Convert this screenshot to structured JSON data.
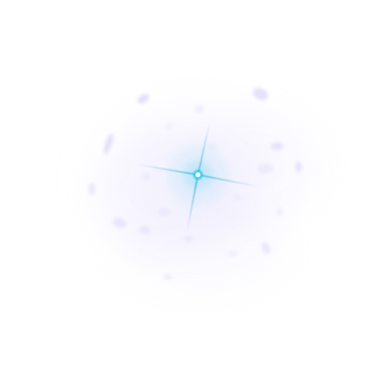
{
  "image": {
    "background": "#ffffff",
    "haze_color": "#b8b0f2",
    "speck_color": "#9d95ea",
    "flare_core_color": "#eaffff",
    "flare_glow_color": "#20c9e8",
    "flare_ray_color": "#52b7df"
  }
}
